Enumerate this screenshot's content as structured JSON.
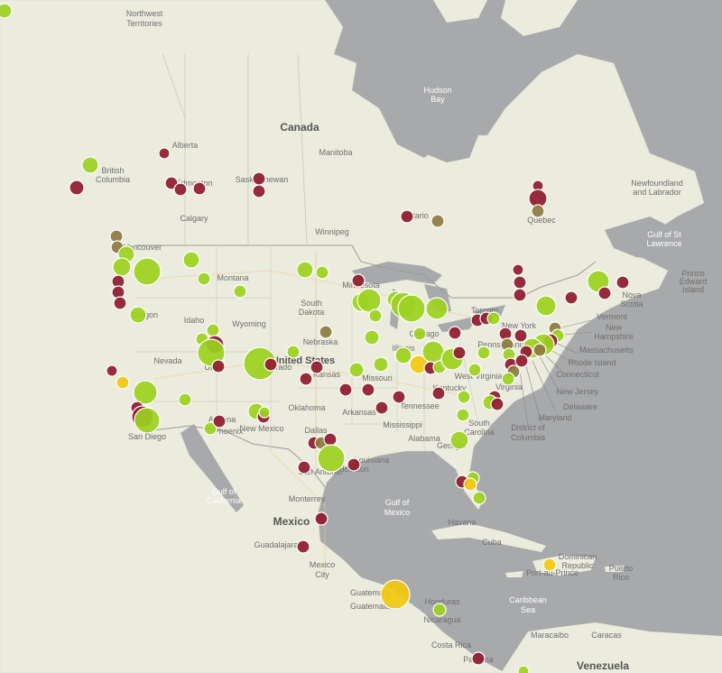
{
  "map": {
    "colors": {
      "water": "#a8a9ab",
      "land": "#ebebde",
      "land_green": "#d7e3c4",
      "border": "#9c9c9c",
      "road": "#f2c07a",
      "marker_green": "#9cd11e",
      "marker_red": "#8e1b2c",
      "marker_olive": "#8c7a3e",
      "marker_yellow": "#f2c80f"
    },
    "labels": {
      "nwt": [
        "Northwest",
        "Territories"
      ],
      "hudson": [
        "Hudson",
        "Bay"
      ],
      "canada": "Canada",
      "alberta": "Alberta",
      "bc": [
        "British",
        "Columbia"
      ],
      "manitoba": "Manitoba",
      "saskatchewan": "Saskatchewan",
      "edmonton": "Edmonton",
      "calgary": "Calgary",
      "winnipeg": "Winnipeg",
      "vancouver": "Vancouver",
      "newfoundland": [
        "Newfoundland",
        "and Labrador"
      ],
      "quebec": "Quebec",
      "ontario": "Ontario",
      "gulf_st_lawrence": [
        "Gulf of St",
        "Lawrence"
      ],
      "pei": [
        "Prince",
        "Edward",
        "Island"
      ],
      "nova_scotia": [
        "Nova",
        "Scotia"
      ],
      "montana": "Montana",
      "idaho": "Idaho",
      "wyoming": "Wyoming",
      "oregon": "Oregon",
      "nevada": "Nevada",
      "utah": "Utah",
      "united_states": "United States",
      "colorado": "Colorado",
      "kansas": "Kansas",
      "nebraska": "Nebraska",
      "south_dakota": [
        "South",
        "Dakota"
      ],
      "minnesota": "Minnesota",
      "illinois": "Illinois",
      "chicago": "Chicago",
      "toronto": "Toronto",
      "new_york": "New York",
      "pennsylvania": "Pennsylvania",
      "vermont": "Vermont",
      "new_hampshire": [
        "New",
        "Hampshire"
      ],
      "massachusetts": "Massachusetts",
      "rhode_island": "Rhode Island",
      "connecticut": "Connecticut",
      "new_jersey": "New Jersey",
      "delaware": "Delaware",
      "maryland": "Maryland",
      "dc": [
        "District of",
        "Columbia"
      ],
      "virginia": "Virginia",
      "west_virginia": "West Virginia",
      "kentucky": "Kentucky",
      "tennessee": "Tennessee",
      "missouri": "Missouri",
      "oklahoma": "Oklahoma",
      "arkansas": "Arkansas",
      "mississippi": "Mississippi",
      "alabama": "Alabama",
      "georgia": "Georgia",
      "south_carolina": [
        "South",
        "Carolina"
      ],
      "louisiana": "Louisiana",
      "dallas": "Dallas",
      "san_antonio": "San Antonio",
      "houston": "Houston",
      "new_mexico": "New Mexico",
      "arizona": "Arizona",
      "phoenix": "Phoenix",
      "san_diego": "San Diego",
      "gulf_california": [
        "Gulf of",
        "California"
      ],
      "monterrey": "Monterrey",
      "mexico": "Mexico",
      "gulf_mexico": [
        "Gulf of",
        "Mexico"
      ],
      "guadalajara": "Guadalajara",
      "mexico_city": [
        "Mexico",
        "City"
      ],
      "havana": "Havana",
      "cuba": "Cuba",
      "dominican": [
        "Dominican",
        "Republic"
      ],
      "port_au_prince": "Port-au-Prince",
      "puerto_rico": [
        "Puerto",
        "Rico"
      ],
      "caribbean": [
        "Caribbean",
        "Sea"
      ],
      "guatemala": [
        "Guatemala",
        "Guatemala"
      ],
      "honduras": "Honduras",
      "nicaragua": "Nicaragua",
      "costa_rica": "Costa Rica",
      "panama": "Panama",
      "maracaibo": "Maracaibo",
      "caracas": "Caracas",
      "venezuela": "Venezuela"
    }
  }
}
